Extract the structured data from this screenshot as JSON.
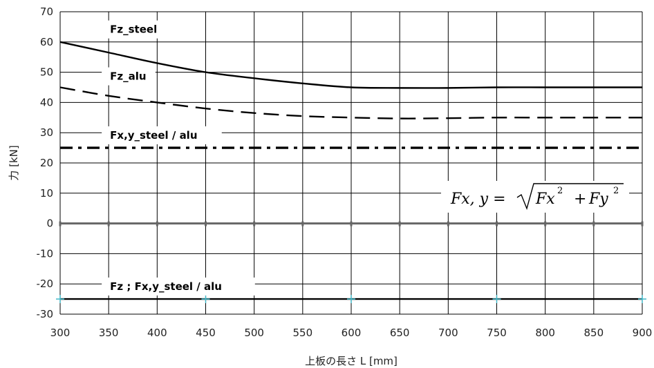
{
  "chart_data": {
    "type": "line",
    "xlabel": "上板の長さ L [mm]",
    "ylabel": "力 [kN]",
    "xlim": [
      300,
      900
    ],
    "ylim": [
      -30,
      70
    ],
    "x_ticks": [
      300,
      350,
      400,
      450,
      500,
      550,
      600,
      650,
      700,
      750,
      800,
      850,
      900
    ],
    "y_ticks": [
      70,
      60,
      50,
      40,
      30,
      20,
      10,
      0,
      -10,
      -20,
      -30
    ],
    "grid": true,
    "series": [
      {
        "name": "Fz_steel",
        "style": "solid",
        "color": "#000000",
        "x": [
          300,
          350,
          400,
          450,
          500,
          550,
          600,
          650,
          700,
          750,
          800,
          850,
          900
        ],
        "y": [
          60,
          56.5,
          53,
          50,
          48,
          46.3,
          45,
          44.8,
          44.8,
          45,
          45,
          45,
          45
        ]
      },
      {
        "name": "Fz_alu",
        "style": "dashed",
        "color": "#000000",
        "x": [
          300,
          350,
          400,
          450,
          500,
          550,
          600,
          650,
          700,
          750,
          800,
          850,
          900
        ],
        "y": [
          45,
          42.2,
          40,
          38,
          36.5,
          35.5,
          35,
          34.7,
          34.8,
          35,
          35,
          35,
          35
        ]
      },
      {
        "name": "Fx,y_steel / alu",
        "style": "dash-dot",
        "color": "#000000",
        "x": [
          300,
          900
        ],
        "y": [
          25,
          25
        ]
      },
      {
        "name": "",
        "style": "solid",
        "color": "#666666",
        "x": [
          300,
          350,
          400,
          450,
          500,
          550,
          600,
          650,
          700,
          750,
          800,
          850,
          900
        ],
        "y": [
          0,
          0,
          0,
          0,
          0,
          0,
          0,
          0,
          0,
          0,
          0,
          0,
          0
        ]
      },
      {
        "name": "Fz ; Fx,y_steel / alu",
        "style": "solid",
        "color": "#000000",
        "marker_color": "#40b8c8",
        "x": [
          300,
          450,
          600,
          750,
          900
        ],
        "y": [
          -25,
          -25,
          -25,
          -25,
          -25
        ]
      }
    ],
    "labels": [
      {
        "text": "Fz_steel",
        "at_x": 350,
        "at_y": 63
      },
      {
        "text": "Fz_alu",
        "at_x": 350,
        "at_y": 47.5
      },
      {
        "text": "Fx,y_steel / alu",
        "at_x": 350,
        "at_y": 28
      },
      {
        "text": "Fz ; Fx,y_steel / alu",
        "at_x": 350,
        "at_y": -22
      }
    ],
    "formula": {
      "lhs": "Fx, y =",
      "term1": "Fx",
      "plus": "+",
      "term2": "Fy",
      "exponent": "2"
    }
  }
}
